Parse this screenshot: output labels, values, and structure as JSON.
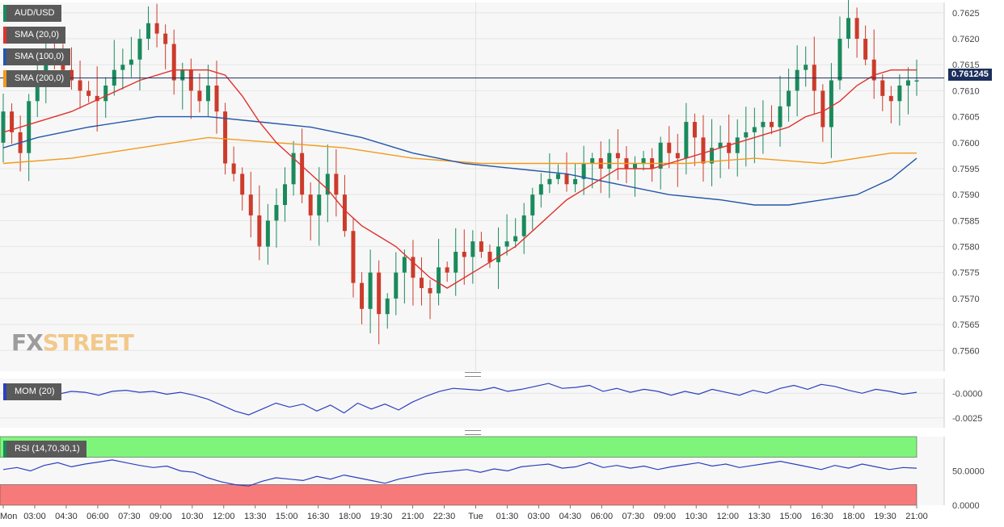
{
  "chart_data": {
    "type": "candlestick",
    "symbol": "AUD/USD",
    "last_price_label": "0.761245",
    "last_price": 0.761245,
    "ylim": [
      0.7556,
      0.7627
    ],
    "y_ticks": [
      "0.7560",
      "0.7565",
      "0.7570",
      "0.7575",
      "0.7580",
      "0.7585",
      "0.7590",
      "0.7595",
      "0.7600",
      "0.7605",
      "0.7610",
      "0.7615",
      "0.7620",
      "0.7625"
    ],
    "x_ticks": [
      "Mon",
      "03:00",
      "04:30",
      "06:00",
      "07:30",
      "09:00",
      "10:30",
      "12:00",
      "13:30",
      "15:00",
      "16:30",
      "18:00",
      "19:30",
      "21:00",
      "22:30",
      "Tue",
      "01:30",
      "03:00",
      "04:30",
      "06:00",
      "07:30",
      "09:00",
      "10:30",
      "12:00",
      "13:30",
      "15:00",
      "16:30",
      "18:00",
      "19:30",
      "21:00"
    ],
    "colors": {
      "up": "#1a8a5c",
      "down": "#cc3b2b",
      "sma20": "#e0312c",
      "sma100": "#2457a8",
      "sma200": "#f29a1a",
      "momentum": "#2c3fbf",
      "rsi": "#2c3fbf",
      "rsi_overbought": "#7ef57a",
      "rsi_oversold": "#f77a7a"
    },
    "price_path": [
      [
        0,
        0.76
      ],
      [
        1,
        0.7606
      ],
      [
        3,
        0.7598
      ],
      [
        4,
        0.7608
      ],
      [
        6,
        0.7617
      ],
      [
        8,
        0.7614
      ],
      [
        10,
        0.761
      ],
      [
        12,
        0.7608
      ],
      [
        14,
        0.7614
      ],
      [
        16,
        0.7616
      ],
      [
        17,
        0.762
      ],
      [
        18,
        0.7623
      ],
      [
        19,
        0.7621
      ],
      [
        20,
        0.7619
      ],
      [
        21,
        0.7612
      ],
      [
        22,
        0.7614
      ],
      [
        23,
        0.761
      ],
      [
        24,
        0.7608
      ],
      [
        25,
        0.7611
      ],
      [
        26,
        0.7606
      ],
      [
        27,
        0.7596
      ],
      [
        28,
        0.7594
      ],
      [
        29,
        0.759
      ],
      [
        30,
        0.7586
      ],
      [
        31,
        0.758
      ],
      [
        32,
        0.7585
      ],
      [
        33,
        0.7588
      ],
      [
        34,
        0.7592
      ],
      [
        35,
        0.7598
      ],
      [
        36,
        0.759
      ],
      [
        37,
        0.7586
      ],
      [
        38,
        0.759
      ],
      [
        39,
        0.7594
      ],
      [
        40,
        0.759
      ],
      [
        41,
        0.7583
      ],
      [
        42,
        0.7573
      ],
      [
        43,
        0.7568
      ],
      [
        44,
        0.7575
      ],
      [
        45,
        0.7567
      ],
      [
        46,
        0.757
      ],
      [
        47,
        0.7575
      ],
      [
        48,
        0.7578
      ],
      [
        49,
        0.7574
      ],
      [
        50,
        0.7572
      ],
      [
        51,
        0.7571
      ],
      [
        52,
        0.7576
      ],
      [
        53,
        0.7575
      ],
      [
        54,
        0.7579
      ],
      [
        55,
        0.7578
      ],
      [
        56,
        0.7581
      ],
      [
        57,
        0.7579
      ],
      [
        58,
        0.7577
      ],
      [
        59,
        0.758
      ],
      [
        60,
        0.7581
      ],
      [
        61,
        0.7582
      ],
      [
        62,
        0.7586
      ],
      [
        63,
        0.759
      ],
      [
        64,
        0.7592
      ],
      [
        65,
        0.7593
      ],
      [
        66,
        0.7594
      ],
      [
        67,
        0.7592
      ],
      [
        68,
        0.7593
      ],
      [
        69,
        0.7596
      ],
      [
        70,
        0.7597
      ],
      [
        71,
        0.7595
      ],
      [
        72,
        0.7598
      ],
      [
        73,
        0.7597
      ],
      [
        74,
        0.7595
      ],
      [
        75,
        0.7596
      ],
      [
        76,
        0.7597
      ],
      [
        77,
        0.7595
      ],
      [
        78,
        0.76
      ],
      [
        79,
        0.7598
      ],
      [
        80,
        0.7597
      ],
      [
        81,
        0.7604
      ],
      [
        82,
        0.7601
      ],
      [
        83,
        0.7596
      ],
      [
        84,
        0.7599
      ],
      [
        85,
        0.76
      ],
      [
        86,
        0.7598
      ],
      [
        87,
        0.7601
      ],
      [
        88,
        0.7602
      ],
      [
        89,
        0.7603
      ],
      [
        90,
        0.7604
      ],
      [
        91,
        0.7603
      ],
      [
        92,
        0.7607
      ],
      [
        93,
        0.761
      ],
      [
        94,
        0.7614
      ],
      [
        95,
        0.7615
      ],
      [
        96,
        0.761
      ],
      [
        97,
        0.7603
      ],
      [
        98,
        0.7612
      ],
      [
        99,
        0.762
      ],
      [
        100,
        0.7624
      ],
      [
        101,
        0.762
      ],
      [
        102,
        0.7616
      ],
      [
        103,
        0.7612
      ],
      [
        104,
        0.7609
      ],
      [
        105,
        0.7608
      ],
      [
        106,
        0.7611
      ],
      [
        107,
        0.7612
      ]
    ],
    "sma20": [
      [
        0,
        0.7602
      ],
      [
        8,
        0.7606
      ],
      [
        16,
        0.7612
      ],
      [
        20,
        0.7614
      ],
      [
        24,
        0.7614
      ],
      [
        26,
        0.7613
      ],
      [
        28,
        0.7609
      ],
      [
        30,
        0.7604
      ],
      [
        32,
        0.76
      ],
      [
        34,
        0.7597
      ],
      [
        36,
        0.7594
      ],
      [
        38,
        0.7591
      ],
      [
        40,
        0.7587
      ],
      [
        42,
        0.7584
      ],
      [
        44,
        0.7582
      ],
      [
        46,
        0.758
      ],
      [
        48,
        0.7577
      ],
      [
        50,
        0.7574
      ],
      [
        52,
        0.7572
      ],
      [
        54,
        0.7574
      ],
      [
        56,
        0.7576
      ],
      [
        58,
        0.7578
      ],
      [
        60,
        0.758
      ],
      [
        62,
        0.7583
      ],
      [
        64,
        0.7586
      ],
      [
        66,
        0.7589
      ],
      [
        68,
        0.7591
      ],
      [
        70,
        0.7593
      ],
      [
        72,
        0.7595
      ],
      [
        74,
        0.7595
      ],
      [
        76,
        0.7595
      ],
      [
        78,
        0.7596
      ],
      [
        80,
        0.7597
      ],
      [
        82,
        0.7598
      ],
      [
        84,
        0.7599
      ],
      [
        86,
        0.76
      ],
      [
        88,
        0.7601
      ],
      [
        90,
        0.7602
      ],
      [
        92,
        0.7603
      ],
      [
        94,
        0.7605
      ],
      [
        96,
        0.7606
      ],
      [
        98,
        0.7608
      ],
      [
        100,
        0.7611
      ],
      [
        102,
        0.7613
      ],
      [
        104,
        0.7614
      ],
      [
        107,
        0.7614
      ]
    ],
    "sma100": [
      [
        0,
        0.7599
      ],
      [
        4,
        0.7601
      ],
      [
        10,
        0.7603
      ],
      [
        18,
        0.7605
      ],
      [
        24,
        0.7605
      ],
      [
        30,
        0.7604
      ],
      [
        36,
        0.7603
      ],
      [
        42,
        0.7601
      ],
      [
        48,
        0.7598
      ],
      [
        54,
        0.7596
      ],
      [
        60,
        0.7595
      ],
      [
        66,
        0.7594
      ],
      [
        72,
        0.7592
      ],
      [
        78,
        0.759
      ],
      [
        84,
        0.7589
      ],
      [
        88,
        0.7588
      ],
      [
        92,
        0.7588
      ],
      [
        96,
        0.7589
      ],
      [
        100,
        0.759
      ],
      [
        104,
        0.7593
      ],
      [
        107,
        0.7597
      ]
    ],
    "sma200": [
      [
        0,
        0.7596
      ],
      [
        8,
        0.7597
      ],
      [
        16,
        0.7599
      ],
      [
        24,
        0.7601
      ],
      [
        32,
        0.76
      ],
      [
        40,
        0.7599
      ],
      [
        48,
        0.7597
      ],
      [
        56,
        0.7596
      ],
      [
        64,
        0.7596
      ],
      [
        72,
        0.7596
      ],
      [
        80,
        0.7596
      ],
      [
        88,
        0.7597
      ],
      [
        96,
        0.7596
      ],
      [
        100,
        0.7597
      ],
      [
        104,
        0.7598
      ],
      [
        107,
        0.7598
      ]
    ],
    "momentum": {
      "label": "MOM (20)",
      "y_ticks": [
        "-0.0000",
        "-0.0025"
      ],
      "values": [
        0.0,
        0.0003,
        0.0001,
        0.0002,
        -0.0001,
        0.0002,
        0.0001,
        -0.0002,
        0.0002,
        0.0003,
        0.0001,
        0.0002,
        -0.0001,
        0.0001,
        -0.0002,
        -0.0006,
        -0.0012,
        -0.0018,
        -0.0022,
        -0.0016,
        -0.001,
        -0.0014,
        -0.0011,
        -0.0018,
        -0.0012,
        -0.002,
        -0.001,
        -0.0016,
        -0.0011,
        -0.0017,
        -0.0009,
        -0.0003,
        0.0002,
        0.0005,
        0.0004,
        0.0003,
        0.0006,
        0.0002,
        0.0004,
        0.0007,
        0.001,
        0.0005,
        0.0006,
        0.0008,
        0.0002,
        0.0005,
        0.0001,
        0.0004,
        0.0002,
        -0.0002,
        0.0002,
        -0.0001,
        0.0004,
        0.0001,
        -0.0002,
        0.0003,
        0.0,
        0.0005,
        0.0008,
        0.0004,
        0.0009,
        0.0007,
        0.0003,
        0.0,
        0.0004,
        0.0002,
        -0.0001,
        0.0001
      ]
    },
    "rsi": {
      "label": "RSI (14,70,30,1)",
      "y_ticks": [
        "50.0000",
        "0.0000"
      ],
      "overbought": 70,
      "oversold": 30,
      "values": [
        52,
        55,
        50,
        58,
        62,
        56,
        60,
        63,
        66,
        62,
        58,
        55,
        57,
        50,
        48,
        40,
        34,
        30,
        28,
        35,
        40,
        38,
        36,
        42,
        38,
        44,
        40,
        36,
        32,
        38,
        42,
        46,
        48,
        50,
        52,
        48,
        53,
        50,
        56,
        58,
        60,
        54,
        56,
        62,
        55,
        58,
        54,
        57,
        52,
        56,
        59,
        62,
        57,
        60,
        55,
        58,
        61,
        64,
        60,
        56,
        52,
        58,
        54,
        60,
        56,
        52,
        55,
        54
      ]
    }
  },
  "legend": {
    "symbol": "AUD/USD",
    "sma20": "SMA (20,0)",
    "sma100": "SMA (100,0)",
    "sma200": "SMA (200,0)",
    "momentum": "MOM (20)",
    "rsi": "RSI (14,70,30,1)"
  },
  "watermark": {
    "part1": "FX",
    "part2": "STREET"
  }
}
